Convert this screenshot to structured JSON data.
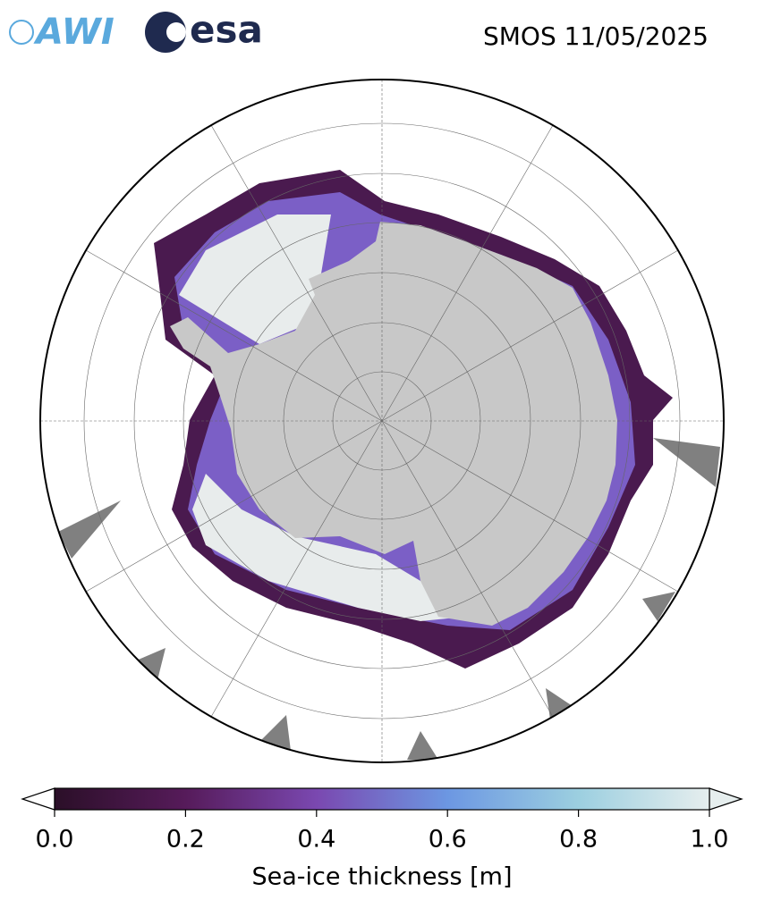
{
  "header": {
    "logo_left": "AWI",
    "logo_right": "esa",
    "title": "SMOS 11/05/2025"
  },
  "colorbar": {
    "label": "Sea-ice thickness [m]",
    "lim": [
      0,
      1
    ],
    "ticks": [
      {
        "value": 0,
        "label": "0.0"
      },
      {
        "value": 0.2,
        "label": "0.2"
      },
      {
        "value": 0.4,
        "label": "0.4"
      },
      {
        "value": 0.6,
        "label": "0.6"
      },
      {
        "value": 0.8,
        "label": "0.8"
      },
      {
        "value": 1,
        "label": "1.0"
      }
    ]
  }
}
